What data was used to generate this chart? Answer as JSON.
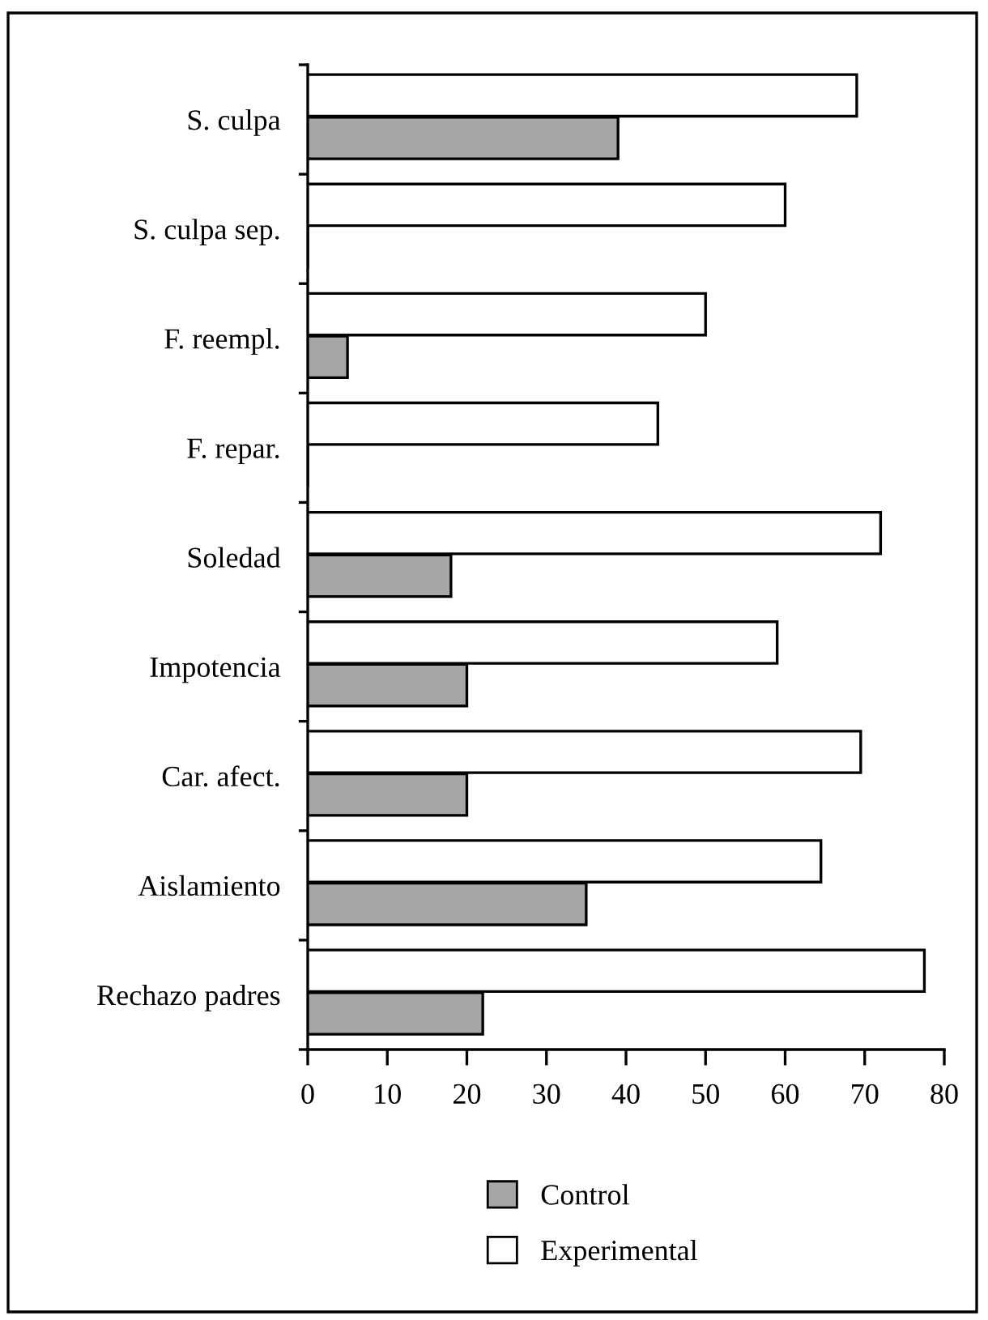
{
  "chart_data": {
    "type": "bar",
    "orientation": "horizontal",
    "categories": [
      "S. culpa",
      "S. culpa sep.",
      "F. reempl.",
      "F. repar.",
      "Soledad",
      "Impotencia",
      "Car. afect.",
      "Aislamiento",
      "Rechazo padres"
    ],
    "series": [
      {
        "name": "Experimental",
        "color": "#ffffff",
        "values": [
          69,
          60,
          50,
          44,
          72,
          59,
          69.5,
          64.5,
          77.5
        ]
      },
      {
        "name": "Control",
        "color": "#a6a6a6",
        "values": [
          39,
          0,
          5,
          0,
          18,
          20,
          20,
          35,
          22
        ]
      }
    ],
    "xlim": [
      0,
      80
    ],
    "xticks": [
      0,
      10,
      20,
      30,
      40,
      50,
      60,
      70,
      80
    ],
    "grid": false,
    "legend": "bottom"
  }
}
